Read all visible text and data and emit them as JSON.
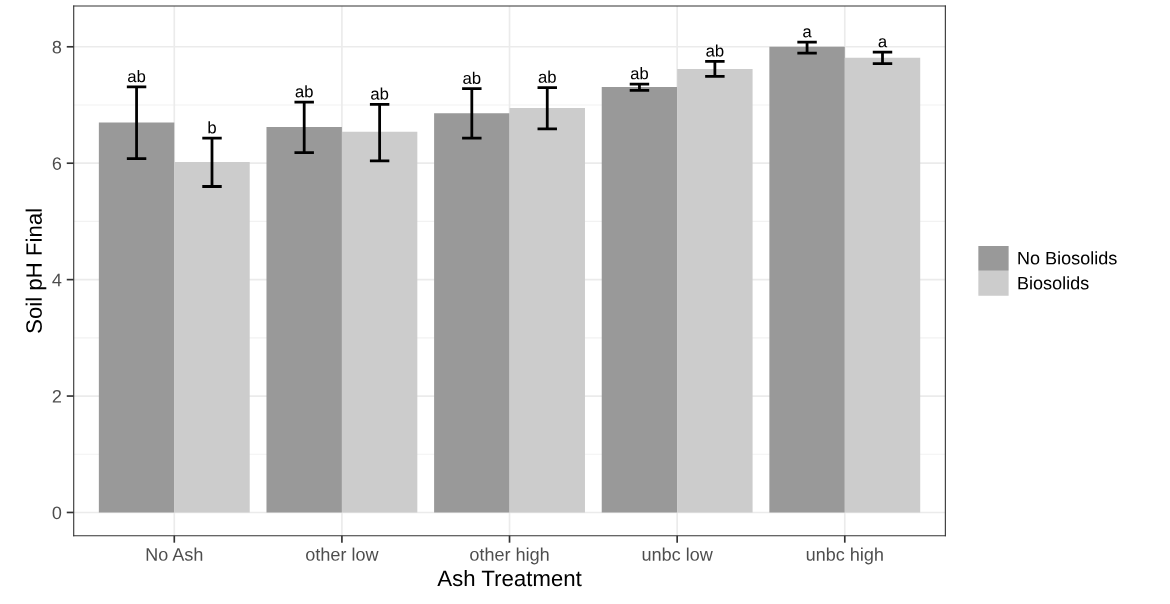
{
  "chart_data": {
    "type": "bar",
    "xlabel": "Ash Treatment",
    "ylabel": "Soil pH Final",
    "categories": [
      "No Ash",
      "other low",
      "other high",
      "unbc low",
      "unbc high"
    ],
    "series": [
      {
        "name": "No Biosolids",
        "color": "#999999",
        "values": [
          6.7,
          6.62,
          6.86,
          7.31,
          8.0
        ],
        "errors": [
          [
            6.08,
            7.31
          ],
          [
            6.18,
            7.05
          ],
          [
            6.43,
            7.28
          ],
          [
            7.25,
            7.36
          ],
          [
            7.89,
            8.08
          ]
        ]
      },
      {
        "name": "Biosolids",
        "color": "#cccccc",
        "values": [
          6.02,
          6.54,
          6.95,
          7.62,
          7.81
        ],
        "errors": [
          [
            5.6,
            6.43
          ],
          [
            6.04,
            7.01
          ],
          [
            6.59,
            7.3
          ],
          [
            7.49,
            7.75
          ],
          [
            7.71,
            7.91
          ]
        ]
      }
    ],
    "annotations": [
      "ab",
      "b",
      "ab",
      "ab",
      "ab",
      "ab",
      "ab",
      "ab",
      "a",
      "a"
    ],
    "ylim": [
      -0.4,
      8.7
    ],
    "yticks": [
      0,
      2,
      4,
      6,
      8
    ],
    "grid": true,
    "legend": "right"
  }
}
